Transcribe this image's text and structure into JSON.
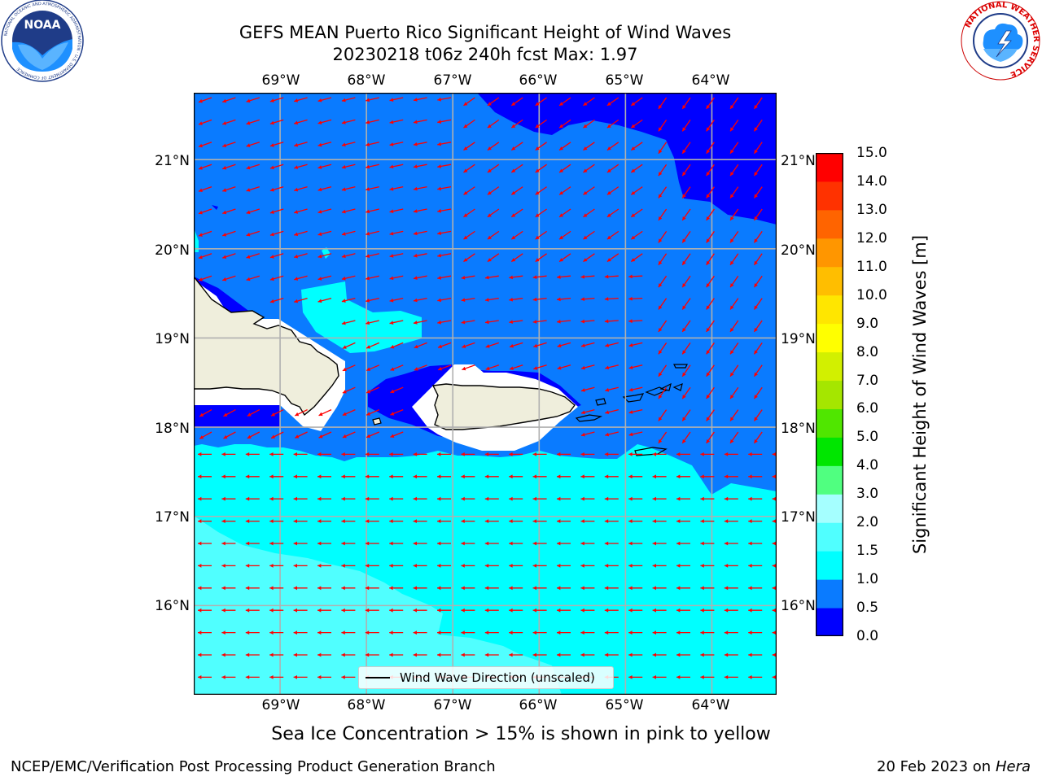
{
  "title": {
    "line1": "GEFS MEAN Puerto Rico Significant Height of Wind Waves",
    "line2": "20230218 t06z 240h fcst   Max: 1.97"
  },
  "logos": {
    "noaa": {
      "text": "NOAA",
      "icon": "noaa-logo",
      "ring_text": "NATIONAL OCEANIC AND ATMOSPHERIC ADMINISTRATION · U.S. DEPARTMENT OF COMMERCE"
    },
    "nws": {
      "icon": "nws-logo",
      "ring_text": "NATIONAL WEATHER SERVICE"
    }
  },
  "map": {
    "lon_labels": [
      "69°W",
      "68°W",
      "67°W",
      "66°W",
      "65°W",
      "64°W"
    ],
    "lon_values": [
      -69,
      -68,
      -67,
      -66,
      -65,
      -64
    ],
    "lat_labels": [
      "21°N",
      "20°N",
      "19°N",
      "18°N",
      "17°N",
      "16°N"
    ],
    "lat_values": [
      21,
      20,
      19,
      18,
      17,
      16
    ],
    "lon_range": [
      -70,
      -63.25
    ],
    "lat_range": [
      15.0,
      21.75
    ],
    "land_color": "#efeedc",
    "arrow_color": "#ff0000",
    "gridlines": true
  },
  "colorbar": {
    "label": "Significant Height of Wind Waves [m]",
    "ticks": [
      "0.0",
      "0.5",
      "1.0",
      "1.5",
      "2.0",
      "3.0",
      "4.0",
      "5.0",
      "6.0",
      "7.0",
      "8.0",
      "9.0",
      "10.0",
      "11.0",
      "12.0",
      "13.0",
      "14.0",
      "15.0"
    ],
    "colors": [
      "#0000ff",
      "#0a7bff",
      "#00ffff",
      "#50ffff",
      "#a5ffff",
      "#50ff80",
      "#00e600",
      "#50e600",
      "#a5e600",
      "#d2f000",
      "#ffff00",
      "#ffe600",
      "#ffbe00",
      "#ff9600",
      "#ff6400",
      "#ff3200",
      "#ff0000"
    ]
  },
  "legend": {
    "label": "Wind Wave Direction (unscaled)"
  },
  "note": "Sea Ice Concentration > 15% is shown in pink to yellow",
  "footer": {
    "left": "NCEP/EMC/Verification Post Processing Product Generation Branch",
    "date": "20 Feb 2023 on",
    "machine": "Hera"
  }
}
